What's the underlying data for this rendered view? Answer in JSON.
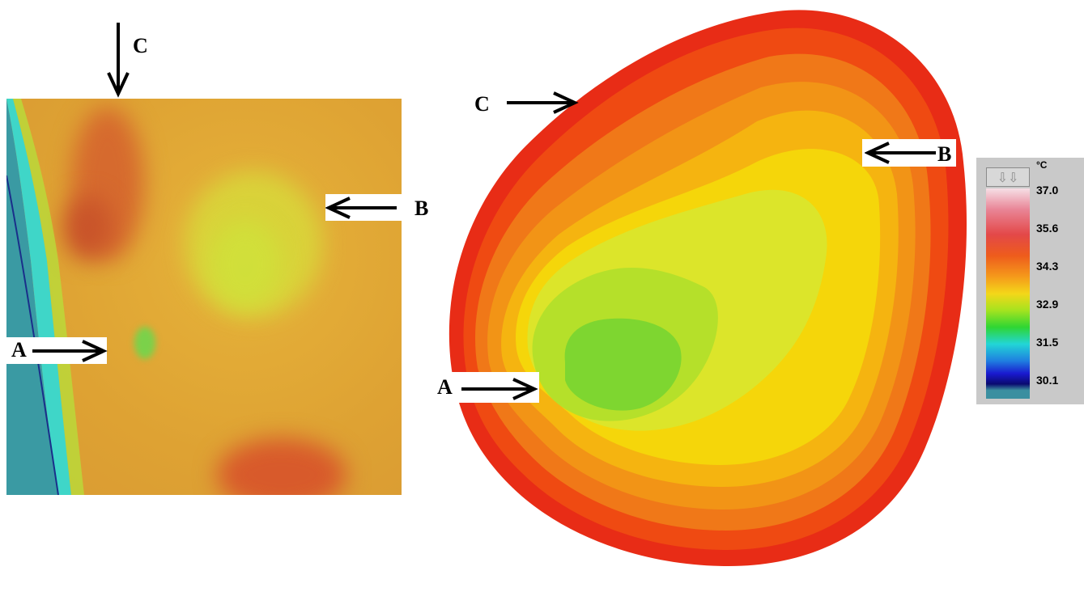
{
  "left_panel": {
    "label_a": "A",
    "label_b": "B",
    "label_c": "C"
  },
  "right_panel": {
    "label_a": "A",
    "label_b": "B",
    "label_c": "C"
  },
  "color_scale": {
    "unit": "°C",
    "ticks": [
      "37.0",
      "35.6",
      "34.3",
      "32.9",
      "31.5",
      "30.1"
    ],
    "button_icon": "double-down-arrow-icon"
  }
}
